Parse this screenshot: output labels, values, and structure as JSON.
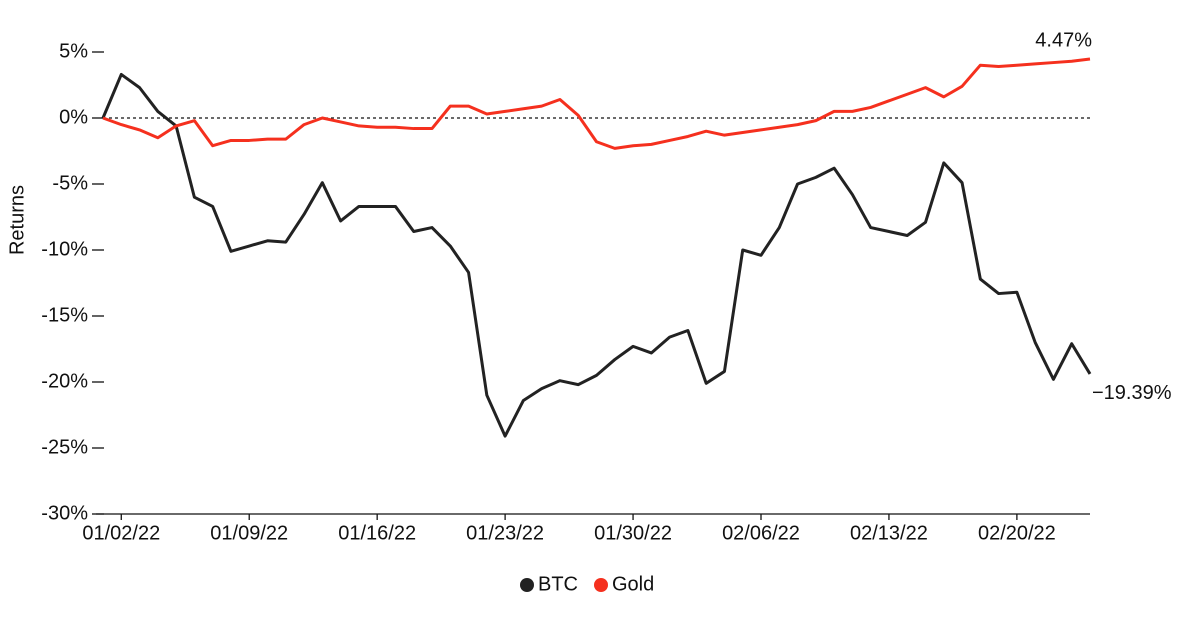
{
  "chart_data": {
    "type": "line",
    "y_label": "Returns",
    "x": [
      "2022-01-01",
      "2022-01-02",
      "2022-01-03",
      "2022-01-04",
      "2022-01-05",
      "2022-01-06",
      "2022-01-07",
      "2022-01-08",
      "2022-01-09",
      "2022-01-10",
      "2022-01-11",
      "2022-01-12",
      "2022-01-13",
      "2022-01-14",
      "2022-01-15",
      "2022-01-16",
      "2022-01-17",
      "2022-01-18",
      "2022-01-19",
      "2022-01-20",
      "2022-01-21",
      "2022-01-22",
      "2022-01-23",
      "2022-01-24",
      "2022-01-25",
      "2022-01-26",
      "2022-01-27",
      "2022-01-28",
      "2022-01-29",
      "2022-01-30",
      "2022-01-31",
      "2022-02-01",
      "2022-02-02",
      "2022-02-03",
      "2022-02-04",
      "2022-02-05",
      "2022-02-06",
      "2022-02-07",
      "2022-02-08",
      "2022-02-09",
      "2022-02-10",
      "2022-02-11",
      "2022-02-12",
      "2022-02-13",
      "2022-02-14",
      "2022-02-15",
      "2022-02-16",
      "2022-02-17",
      "2022-02-18",
      "2022-02-19",
      "2022-02-20",
      "2022-02-21",
      "2022-02-22",
      "2022-02-23",
      "2022-02-24"
    ],
    "series": [
      {
        "name": "BTC",
        "color": "#222222",
        "values": [
          0,
          3.3,
          2.3,
          0.5,
          -0.6,
          -6.0,
          -6.7,
          -10.1,
          -9.7,
          -9.3,
          -9.4,
          -7.3,
          -4.9,
          -7.8,
          -6.7,
          -6.7,
          -6.7,
          -8.6,
          -8.3,
          -9.7,
          -11.7,
          -21.0,
          -24.1,
          -21.4,
          -20.5,
          -19.9,
          -20.2,
          -19.5,
          -18.3,
          -17.3,
          -17.8,
          -16.6,
          -16.1,
          -20.1,
          -19.2,
          -10.0,
          -10.4,
          -8.3,
          -5.0,
          -4.5,
          -3.8,
          -5.8,
          -8.3,
          -8.6,
          -8.9,
          -7.9,
          -3.4,
          -4.9,
          -12.2,
          -13.3,
          -13.2,
          -17.0,
          -19.8,
          -17.1,
          -19.39
        ],
        "value_labels": [
          null,
          null,
          null,
          null,
          null,
          null,
          null,
          null,
          null,
          null,
          null,
          null,
          null,
          null,
          null,
          null,
          null,
          null,
          null,
          null,
          null,
          null,
          null,
          null,
          null,
          null,
          null,
          null,
          null,
          null,
          null,
          null,
          null,
          null,
          null,
          null,
          null,
          null,
          null,
          null,
          null,
          null,
          null,
          null,
          null,
          null,
          null,
          null,
          null,
          null,
          null,
          null,
          null,
          null,
          "−19.39%"
        ]
      },
      {
        "name": "Gold",
        "color": "#f5301e",
        "values": [
          0,
          -0.5,
          -0.9,
          -1.5,
          -0.6,
          -0.2,
          -2.1,
          -1.7,
          -1.7,
          -1.6,
          -1.6,
          -0.5,
          0,
          -0.3,
          -0.6,
          -0.7,
          -0.7,
          -0.8,
          -0.8,
          0.9,
          0.9,
          0.3,
          0.5,
          0.7,
          0.9,
          1.4,
          0.2,
          -1.8,
          -2.3,
          -2.1,
          -2.0,
          -1.7,
          -1.4,
          -1.0,
          -1.3,
          -1.1,
          -0.9,
          -0.7,
          -0.5,
          -0.2,
          0.5,
          0.5,
          0.8,
          1.3,
          1.8,
          2.3,
          1.6,
          2.4,
          4.0,
          3.9,
          4.0,
          4.1,
          4.2,
          4.3,
          4.47
        ],
        "value_labels": [
          null,
          null,
          null,
          null,
          null,
          null,
          null,
          null,
          null,
          null,
          null,
          null,
          null,
          null,
          null,
          null,
          null,
          null,
          null,
          null,
          null,
          null,
          null,
          null,
          null,
          null,
          null,
          null,
          null,
          null,
          null,
          null,
          null,
          null,
          null,
          null,
          null,
          null,
          null,
          null,
          null,
          null,
          null,
          null,
          null,
          null,
          null,
          null,
          null,
          null,
          null,
          null,
          null,
          null,
          "4.47%"
        ]
      }
    ],
    "ylim": [
      -30,
      5
    ],
    "yticks": [
      {
        "value": 5,
        "label": "5%"
      },
      {
        "value": 0,
        "label": "0%"
      },
      {
        "value": -5,
        "label": "-5%"
      },
      {
        "value": -10,
        "label": "-10%"
      },
      {
        "value": -15,
        "label": "-15%"
      },
      {
        "value": -20,
        "label": "-20%"
      },
      {
        "value": -25,
        "label": "-25%"
      },
      {
        "value": -30,
        "label": "-30%"
      }
    ],
    "xticks": [
      {
        "value": "2022-01-02",
        "label": "01/02/22"
      },
      {
        "value": "2022-01-09",
        "label": "01/09/22"
      },
      {
        "value": "2022-01-16",
        "label": "01/16/22"
      },
      {
        "value": "2022-01-23",
        "label": "01/23/22"
      },
      {
        "value": "2022-01-30",
        "label": "01/30/22"
      },
      {
        "value": "2022-02-06",
        "label": "02/06/22"
      },
      {
        "value": "2022-02-13",
        "label": "02/13/22"
      },
      {
        "value": "2022-02-20",
        "label": "02/20/22"
      }
    ],
    "zero_line": true,
    "grid": false,
    "legend": "bottom"
  }
}
